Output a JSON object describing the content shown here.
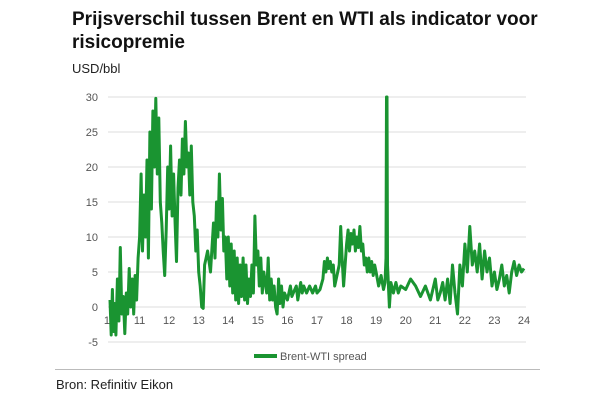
{
  "chart_data": {
    "type": "line",
    "title": "Prijsverschil tussen Brent en WTI als indicator voor risicopremie",
    "ylabel": "USD/bbl",
    "xlabel": "",
    "source": "Bron: Refinitiv Eikon",
    "ylim": [
      -5,
      30
    ],
    "xlim": [
      10,
      24
    ],
    "yticks": [
      "30",
      "25",
      "20",
      "15",
      "10",
      "5",
      "0",
      "-5"
    ],
    "ytick_values": [
      30,
      25,
      20,
      15,
      10,
      5,
      0,
      -5
    ],
    "xticks": [
      "10",
      "11",
      "12",
      "13",
      "14",
      "15",
      "16",
      "17",
      "18",
      "19",
      "20",
      "21",
      "22",
      "23",
      "24"
    ],
    "grid": true,
    "legend_position": "bottom",
    "color": "#1a9431",
    "series": [
      {
        "name": "Brent-WTI spread",
        "points": [
          [
            10.0,
            1
          ],
          [
            10.04,
            -4
          ],
          [
            10.08,
            2.5
          ],
          [
            10.12,
            -3.5
          ],
          [
            10.16,
            0.5
          ],
          [
            10.2,
            -4
          ],
          [
            10.25,
            4
          ],
          [
            10.3,
            -2
          ],
          [
            10.35,
            8.5
          ],
          [
            10.4,
            -1
          ],
          [
            10.45,
            1.5
          ],
          [
            10.5,
            -3.8
          ],
          [
            10.55,
            2
          ],
          [
            10.6,
            -1
          ],
          [
            10.65,
            5.5
          ],
          [
            10.7,
            0
          ],
          [
            10.75,
            4
          ],
          [
            10.8,
            -1
          ],
          [
            10.85,
            4.5
          ],
          [
            10.9,
            1
          ],
          [
            10.95,
            7
          ],
          [
            11.0,
            10
          ],
          [
            11.05,
            19
          ],
          [
            11.1,
            8
          ],
          [
            11.15,
            16
          ],
          [
            11.2,
            10
          ],
          [
            11.25,
            21
          ],
          [
            11.3,
            7
          ],
          [
            11.35,
            25
          ],
          [
            11.4,
            14
          ],
          [
            11.45,
            28
          ],
          [
            11.5,
            20
          ],
          [
            11.55,
            29.8
          ],
          [
            11.6,
            19
          ],
          [
            11.65,
            27
          ],
          [
            11.7,
            15
          ],
          [
            11.75,
            12
          ],
          [
            11.8,
            8
          ],
          [
            11.85,
            4.5
          ],
          [
            11.9,
            11
          ],
          [
            11.95,
            20
          ],
          [
            12.0,
            14
          ],
          [
            12.05,
            23
          ],
          [
            12.1,
            13
          ],
          [
            12.15,
            19
          ],
          [
            12.2,
            12
          ],
          [
            12.25,
            6.5
          ],
          [
            12.3,
            17
          ],
          [
            12.35,
            21
          ],
          [
            12.4,
            16
          ],
          [
            12.45,
            24
          ],
          [
            12.5,
            19
          ],
          [
            12.55,
            26.5
          ],
          [
            12.6,
            20
          ],
          [
            12.65,
            22
          ],
          [
            12.7,
            16
          ],
          [
            12.75,
            23
          ],
          [
            12.8,
            15
          ],
          [
            12.85,
            13
          ],
          [
            12.9,
            8
          ],
          [
            12.95,
            11
          ],
          [
            13.0,
            5
          ],
          [
            13.05,
            3
          ],
          [
            13.1,
            0
          ],
          [
            13.15,
            -0.2
          ],
          [
            13.2,
            6
          ],
          [
            13.3,
            8
          ],
          [
            13.4,
            5
          ],
          [
            13.5,
            12
          ],
          [
            13.55,
            7
          ],
          [
            13.6,
            15
          ],
          [
            13.65,
            10
          ],
          [
            13.7,
            19
          ],
          [
            13.75,
            11
          ],
          [
            13.8,
            15.5
          ],
          [
            13.85,
            8
          ],
          [
            13.9,
            10
          ],
          [
            13.95,
            4
          ],
          [
            14.0,
            10
          ],
          [
            14.05,
            3
          ],
          [
            14.1,
            9
          ],
          [
            14.15,
            2
          ],
          [
            14.2,
            8
          ],
          [
            14.25,
            1
          ],
          [
            14.3,
            7
          ],
          [
            14.35,
            0.5
          ],
          [
            14.4,
            6
          ],
          [
            14.45,
            1.5
          ],
          [
            14.5,
            7
          ],
          [
            14.55,
            1
          ],
          [
            14.6,
            6
          ],
          [
            14.65,
            0.5
          ],
          [
            14.7,
            4
          ],
          [
            14.75,
            1.5
          ],
          [
            14.8,
            6
          ],
          [
            14.85,
            2
          ],
          [
            14.9,
            13
          ],
          [
            14.95,
            6
          ],
          [
            15.0,
            8
          ],
          [
            15.05,
            3
          ],
          [
            15.1,
            7
          ],
          [
            15.15,
            2
          ],
          [
            15.2,
            5
          ],
          [
            15.3,
            2
          ],
          [
            15.35,
            7
          ],
          [
            15.4,
            1
          ],
          [
            15.45,
            4
          ],
          [
            15.5,
            1
          ],
          [
            15.55,
            3
          ],
          [
            15.6,
            0
          ],
          [
            15.65,
            -1
          ],
          [
            15.7,
            4
          ],
          [
            15.75,
            0.5
          ],
          [
            15.8,
            3
          ],
          [
            15.85,
            0
          ],
          [
            15.9,
            2
          ],
          [
            16.0,
            1
          ],
          [
            16.1,
            3
          ],
          [
            16.15,
            1.5
          ],
          [
            16.2,
            2
          ],
          [
            16.3,
            3
          ],
          [
            16.35,
            1
          ],
          [
            16.45,
            3.5
          ],
          [
            16.5,
            2
          ],
          [
            16.55,
            3
          ],
          [
            16.65,
            2
          ],
          [
            16.75,
            3
          ],
          [
            16.85,
            2
          ],
          [
            16.95,
            3
          ],
          [
            17.0,
            2
          ],
          [
            17.1,
            2.5
          ],
          [
            17.2,
            4
          ],
          [
            17.25,
            6.5
          ],
          [
            17.3,
            5
          ],
          [
            17.35,
            7
          ],
          [
            17.4,
            5.5
          ],
          [
            17.45,
            6.5
          ],
          [
            17.5,
            5
          ],
          [
            17.55,
            6
          ],
          [
            17.6,
            3
          ],
          [
            17.65,
            4
          ],
          [
            17.7,
            5
          ],
          [
            17.75,
            6
          ],
          [
            17.8,
            11.5
          ],
          [
            17.85,
            7
          ],
          [
            17.9,
            3
          ],
          [
            17.95,
            6
          ],
          [
            18.0,
            9
          ],
          [
            18.05,
            11
          ],
          [
            18.1,
            8
          ],
          [
            18.15,
            10.5
          ],
          [
            18.2,
            9
          ],
          [
            18.25,
            11
          ],
          [
            18.3,
            8
          ],
          [
            18.35,
            10
          ],
          [
            18.4,
            8.5
          ],
          [
            18.45,
            11.5
          ],
          [
            18.5,
            8
          ],
          [
            18.55,
            9
          ],
          [
            18.6,
            6
          ],
          [
            18.65,
            7
          ],
          [
            18.7,
            5
          ],
          [
            18.75,
            7
          ],
          [
            18.8,
            5
          ],
          [
            18.85,
            6.5
          ],
          [
            18.9,
            4.5
          ],
          [
            18.95,
            6
          ],
          [
            19.0,
            5
          ],
          [
            19.05,
            3
          ],
          [
            19.1,
            4.5
          ],
          [
            19.15,
            2.5
          ],
          [
            19.18,
            3.5
          ],
          [
            19.2,
            7
          ],
          [
            19.21,
            30
          ],
          [
            19.22,
            30
          ],
          [
            19.23,
            6
          ],
          [
            19.27,
            0
          ],
          [
            19.3,
            3.5
          ],
          [
            19.35,
            2
          ],
          [
            19.4,
            3.5
          ],
          [
            19.45,
            2
          ],
          [
            19.5,
            3
          ],
          [
            19.6,
            2.5
          ],
          [
            19.7,
            4
          ],
          [
            19.8,
            3
          ],
          [
            19.9,
            1.5
          ],
          [
            20.0,
            3
          ],
          [
            20.1,
            1
          ],
          [
            20.2,
            4
          ],
          [
            20.25,
            1
          ],
          [
            20.3,
            2
          ],
          [
            20.35,
            3.5
          ],
          [
            20.4,
            1
          ],
          [
            20.45,
            4
          ],
          [
            20.5,
            0.5
          ],
          [
            20.55,
            6
          ],
          [
            20.6,
            2
          ],
          [
            20.65,
            -1
          ],
          [
            20.7,
            6
          ],
          [
            20.75,
            3
          ],
          [
            20.8,
            9
          ],
          [
            20.85,
            5
          ],
          [
            20.9,
            11.5
          ],
          [
            20.95,
            6
          ],
          [
            21.0,
            8
          ],
          [
            21.05,
            5
          ],
          [
            21.1,
            9
          ],
          [
            21.15,
            4
          ],
          [
            21.2,
            8
          ],
          [
            21.25,
            5
          ],
          [
            21.3,
            7
          ],
          [
            21.35,
            3
          ],
          [
            21.4,
            5
          ],
          [
            21.45,
            2.5
          ],
          [
            21.5,
            4
          ],
          [
            21.55,
            6
          ],
          [
            21.6,
            3
          ],
          [
            21.65,
            4.5
          ],
          [
            21.7,
            2
          ],
          [
            21.75,
            5
          ],
          [
            21.8,
            6.5
          ],
          [
            21.85,
            4.5
          ],
          [
            21.9,
            6
          ],
          [
            21.95,
            5
          ],
          [
            22.0,
            5.5
          ]
        ]
      }
    ]
  }
}
